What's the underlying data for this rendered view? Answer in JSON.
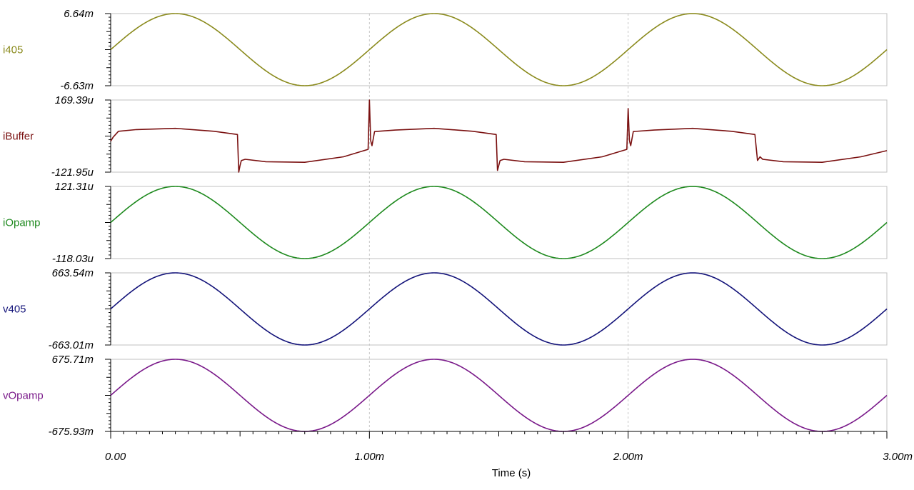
{
  "chart_data": {
    "type": "line",
    "xlabel": "Time (s)",
    "xlim": [
      0,
      0.003
    ],
    "x_ticks": [
      "0.00",
      "1.00m",
      "2.00m",
      "3.00m"
    ],
    "x_tick_values": [
      0,
      0.001,
      0.002,
      0.003
    ],
    "grid": "vertical dashed at major x ticks",
    "panels": [
      {
        "name": "i405",
        "color": "#8b8b1e",
        "ylim": [
          -0.00663,
          0.00664
        ],
        "ytop_label": "6.64m",
        "ybottom_label": "-6.63m",
        "shape": "sine",
        "frequency_hz": 1000,
        "x": [
          0,
          0.00025,
          0.0005,
          0.00075,
          0.001,
          0.00125,
          0.0015,
          0.00175,
          0.002,
          0.00225,
          0.0025,
          0.00275,
          0.003
        ],
        "values": [
          0,
          0.00664,
          0,
          -0.00663,
          0,
          0.00664,
          0,
          -0.00663,
          0,
          0.00664,
          0,
          -0.00663,
          0
        ]
      },
      {
        "name": "iBuffer",
        "color": "#7a1010",
        "ylim": [
          -0.00012195,
          0.00016939
        ],
        "ytop_label": "169.39u",
        "ybottom_label": "-121.95u",
        "shape": "piecewise",
        "x": [
          0,
          1e-05,
          3e-05,
          0.0001,
          0.00025,
          0.0004,
          0.00049,
          0.000495,
          0.0005,
          0.000505,
          0.00052,
          0.0006,
          0.00075,
          0.0009,
          0.000995,
          0.001,
          0.001005,
          0.00101,
          0.00102,
          0.0011,
          0.00125,
          0.0014,
          0.00149,
          0.001495,
          0.0015,
          0.001505,
          0.00152,
          0.0016,
          0.00175,
          0.0019,
          0.001995,
          0.002,
          0.002005,
          0.00201,
          0.00202,
          0.0021,
          0.00225,
          0.0024,
          0.00249,
          0.0025,
          0.00251,
          0.00252,
          0.0026,
          0.00275,
          0.0029,
          0.003
        ],
        "values": [
          3e-06,
          2e-05,
          4.3e-05,
          5e-05,
          5.5e-05,
          4.3e-05,
          3e-05,
          -0.00012195,
          -9.5e-05,
          -7.5e-05,
          -7e-05,
          -8e-05,
          -8.2e-05,
          -6e-05,
          -3e-05,
          0.00016939,
          5e-06,
          -1.5e-05,
          4.2e-05,
          4.8e-05,
          5.5e-05,
          4.3e-05,
          3e-05,
          -0.000115,
          -9.5e-05,
          -7.5e-05,
          -7e-05,
          -8e-05,
          -8.2e-05,
          -6e-05,
          -3e-05,
          0.000135,
          5e-06,
          -1.5e-05,
          4.2e-05,
          4.8e-05,
          5.5e-05,
          4.3e-05,
          3e-05,
          -7.5e-05,
          -6e-05,
          -7e-05,
          -8e-05,
          -8.2e-05,
          -6e-05,
          -3.5e-05
        ]
      },
      {
        "name": "iOpamp",
        "color": "#1f8a1f",
        "ylim": [
          -0.00011803,
          0.00012131
        ],
        "ytop_label": "121.31u",
        "ybottom_label": "-118.03u",
        "shape": "sine",
        "frequency_hz": 1000,
        "x": [
          0,
          0.00025,
          0.0005,
          0.00075,
          0.001,
          0.00125,
          0.0015,
          0.00175,
          0.002,
          0.00225,
          0.0025,
          0.00275,
          0.003
        ],
        "values": [
          0,
          0.00012131,
          0,
          -0.00011803,
          0,
          0.00012131,
          0,
          -0.00011803,
          0,
          0.00012131,
          0,
          -0.00011803,
          0
        ]
      },
      {
        "name": "v405",
        "color": "#14147a",
        "ylim": [
          -0.66301,
          0.66354
        ],
        "ytop_label": "663.54m",
        "ybottom_label": "-663.01m",
        "shape": "sine",
        "frequency_hz": 1000,
        "x": [
          0,
          0.00025,
          0.0005,
          0.00075,
          0.001,
          0.00125,
          0.0015,
          0.00175,
          0.002,
          0.00225,
          0.0025,
          0.00275,
          0.003
        ],
        "values": [
          0,
          0.66354,
          0,
          -0.66301,
          0,
          0.66354,
          0,
          -0.66301,
          0,
          0.66354,
          0,
          -0.66301,
          0
        ]
      },
      {
        "name": "vOpamp",
        "color": "#7a1a8a",
        "ylim": [
          -0.67593,
          0.67571
        ],
        "ytop_label": "675.71m",
        "ybottom_label": "-675.93m",
        "shape": "sine",
        "frequency_hz": 1000,
        "x": [
          0,
          0.00025,
          0.0005,
          0.00075,
          0.001,
          0.00125,
          0.0015,
          0.00175,
          0.002,
          0.00225,
          0.0025,
          0.00275,
          0.003
        ],
        "values": [
          0,
          0.67571,
          0,
          -0.67593,
          0,
          0.67571,
          0,
          -0.67593,
          0,
          0.67571,
          0,
          -0.67593,
          0
        ]
      }
    ]
  }
}
